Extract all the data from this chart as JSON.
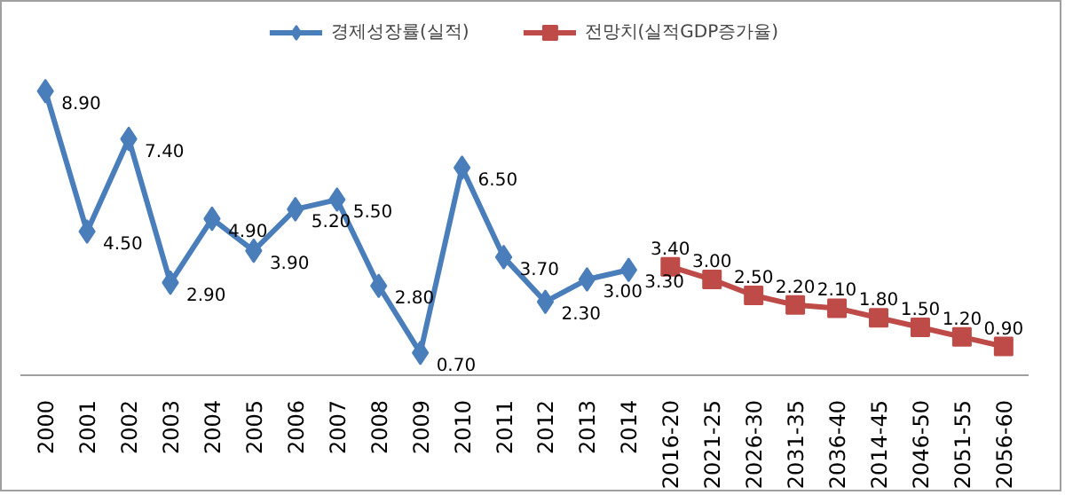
{
  "chart_data": {
    "type": "line",
    "categories": [
      "2000",
      "2001",
      "2002",
      "2003",
      "2004",
      "2005",
      "2006",
      "2007",
      "2008",
      "2009",
      "2010",
      "2011",
      "2012",
      "2013",
      "2014",
      "2016-20",
      "2021-25",
      "2026-30",
      "2031-35",
      "2036-40",
      "2014-45",
      "2046-50",
      "2051-55",
      "2056-60"
    ],
    "series": [
      {
        "name": "경제성장률(실적)",
        "color": "#4a7ebb",
        "marker": "diamond",
        "values": [
          8.9,
          4.5,
          7.4,
          2.9,
          4.9,
          3.9,
          5.2,
          5.5,
          2.8,
          0.7,
          6.5,
          3.7,
          2.3,
          3.0,
          3.3,
          null,
          null,
          null,
          null,
          null,
          null,
          null,
          null,
          null
        ],
        "value_labels": [
          "8.90",
          "4.50",
          "7.40",
          "2.90",
          "4.90",
          "3.90",
          "5.20",
          "5.50",
          "2.80",
          "0.70",
          "6.50",
          "3.70",
          "2.30",
          "3.00",
          "3.30",
          null,
          null,
          null,
          null,
          null,
          null,
          null,
          null,
          null
        ]
      },
      {
        "name": "전망치(실적GDP증가율)",
        "color": "#be4b48",
        "marker": "square",
        "values": [
          null,
          null,
          null,
          null,
          null,
          null,
          null,
          null,
          null,
          null,
          null,
          null,
          null,
          null,
          null,
          3.4,
          3.0,
          2.5,
          2.2,
          2.1,
          1.8,
          1.5,
          1.2,
          0.9
        ],
        "value_labels": [
          null,
          null,
          null,
          null,
          null,
          null,
          null,
          null,
          null,
          null,
          null,
          null,
          null,
          null,
          null,
          "3.40",
          "3.00",
          "2.50",
          "2.20",
          "2.10",
          "1.80",
          "1.50",
          "1.20",
          "0.90"
        ]
      }
    ],
    "legend": "top",
    "grid": false
  }
}
